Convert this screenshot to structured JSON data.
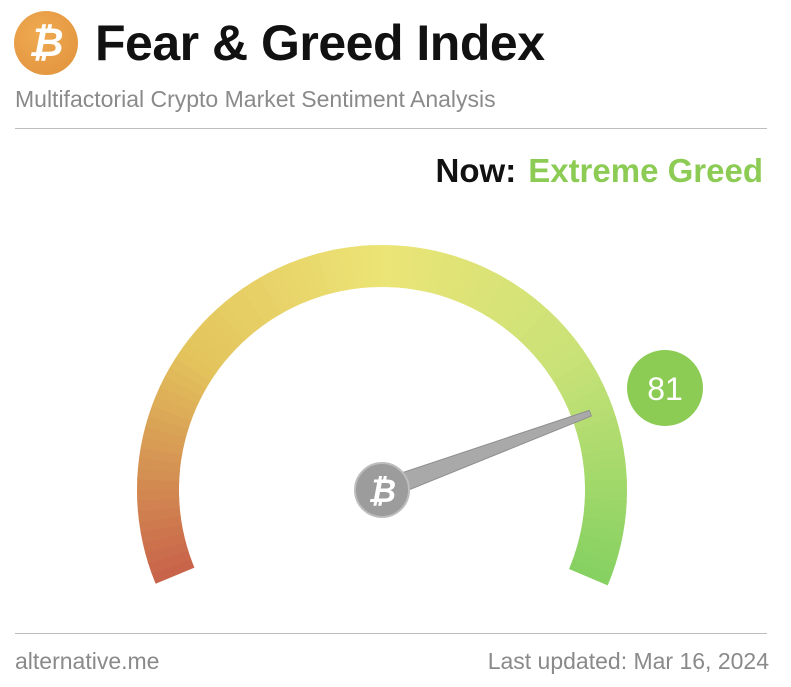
{
  "header": {
    "logo_icon": "bitcoin-icon",
    "logo_glyph": "₿",
    "title": "Fear & Greed Index",
    "subtitle": "Multifactorial Crypto Market Sentiment Analysis"
  },
  "status": {
    "now_label": "Now:",
    "classification": "Extreme Greed",
    "classification_color": "#8ccc55"
  },
  "gauge": {
    "value": 81,
    "value_label": "81",
    "min": 0,
    "max": 100,
    "badge_color": "#8ccc55",
    "colors": [
      "#c8644a",
      "#e3c35c",
      "#ece476",
      "#c9e277",
      "#86d162"
    ]
  },
  "footer": {
    "source": "alternative.me",
    "last_updated": "Last updated: Mar 16, 2024"
  }
}
